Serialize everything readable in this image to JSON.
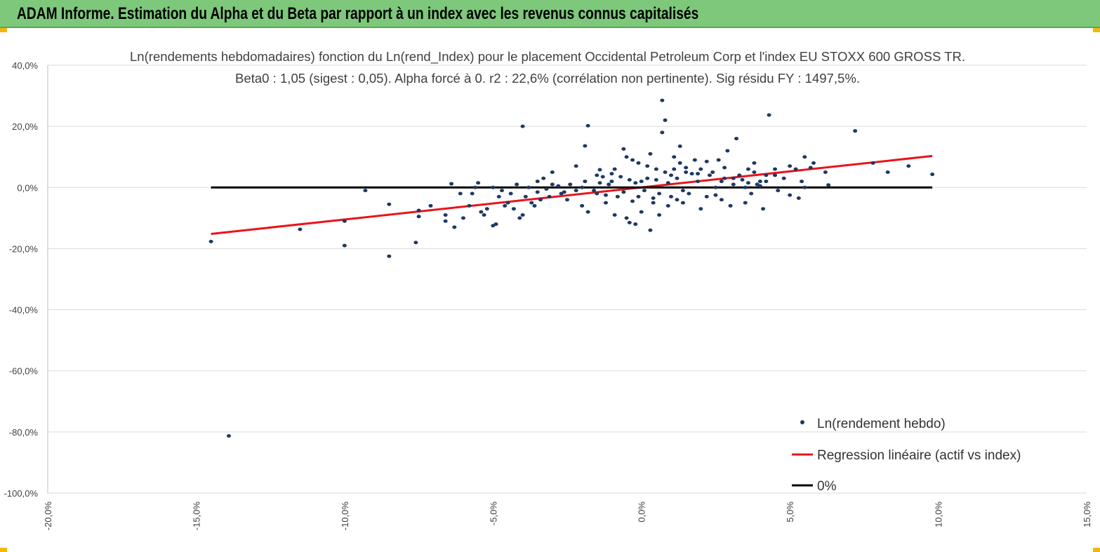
{
  "header": {
    "title": "ADAM Informe. Estimation du Alpha et du Beta par rapport à un index avec les revenus connus capitalisés"
  },
  "colors": {
    "banner": "#7dc87a",
    "points": "#1f3864",
    "regression": "#e8141b",
    "zero": "#000000",
    "grid": "#d9d9d9"
  },
  "chart_data": {
    "type": "scatter",
    "title": "Ln(rendements hebdomadaires) fonction du Ln(rend_Index) pour le placement Occidental Petroleum Corp et l'index EU STOXX 600 GROSS TR.",
    "subtitle": "Beta0 : 1,05 (sigest : 0,05). Alpha forcé à 0. r2 : 22,6% (corrélation non pertinente). Sig résidu FY : 1497,5%.",
    "xlabel": "",
    "ylabel": "",
    "xlim": [
      -0.2,
      0.15
    ],
    "ylim": [
      -1.0,
      0.4
    ],
    "x_ticks": [
      -0.2,
      -0.15,
      -0.1,
      -0.05,
      0.0,
      0.05,
      0.1,
      0.15
    ],
    "x_tick_labels": [
      "-20,0%",
      "-15,0%",
      "-10,0%",
      "-5,0%",
      "0,0%",
      "5,0%",
      "10,0%",
      "15,0%"
    ],
    "y_ticks": [
      0.4,
      0.2,
      0.0,
      -0.2,
      -0.4,
      -0.6,
      -0.8,
      -1.0
    ],
    "y_tick_labels": [
      "40,0%",
      "20,0%",
      "0,0%",
      "-20,0%",
      "-40,0%",
      "-60,0%",
      "-80,0%",
      "-100,0%"
    ],
    "grid": "horizontal",
    "legend_position": "bottom-right",
    "series": [
      {
        "name": "Ln(rendement hebdo)",
        "kind": "points",
        "points": [
          [
            -0.145,
            -0.177
          ],
          [
            -0.139,
            -0.813
          ],
          [
            -0.115,
            -0.137
          ],
          [
            -0.1,
            -0.19
          ],
          [
            -0.1,
            -0.11
          ],
          [
            -0.093,
            -0.01
          ],
          [
            -0.085,
            -0.225
          ],
          [
            -0.085,
            -0.055
          ],
          [
            -0.076,
            -0.18
          ],
          [
            -0.075,
            -0.075
          ],
          [
            -0.075,
            -0.095
          ],
          [
            -0.071,
            -0.06
          ],
          [
            -0.066,
            -0.09
          ],
          [
            -0.066,
            -0.11
          ],
          [
            -0.064,
            0.012
          ],
          [
            -0.063,
            -0.13
          ],
          [
            -0.061,
            -0.02
          ],
          [
            -0.06,
            -0.1
          ],
          [
            -0.058,
            -0.06
          ],
          [
            -0.057,
            -0.02
          ],
          [
            -0.056,
            0.0
          ],
          [
            -0.055,
            0.015
          ],
          [
            -0.054,
            -0.08
          ],
          [
            -0.053,
            -0.09
          ],
          [
            -0.052,
            -0.07
          ],
          [
            -0.05,
            0.0
          ],
          [
            -0.05,
            -0.125
          ],
          [
            -0.049,
            -0.12
          ],
          [
            -0.048,
            -0.03
          ],
          [
            -0.047,
            -0.01
          ],
          [
            -0.046,
            -0.06
          ],
          [
            -0.045,
            -0.05
          ],
          [
            -0.044,
            -0.02
          ],
          [
            -0.043,
            -0.07
          ],
          [
            -0.042,
            0.01
          ],
          [
            -0.041,
            -0.1
          ],
          [
            -0.04,
            -0.09
          ],
          [
            -0.04,
            0.2
          ],
          [
            -0.039,
            -0.03
          ],
          [
            -0.038,
            0.0
          ],
          [
            -0.037,
            -0.05
          ],
          [
            -0.036,
            -0.06
          ],
          [
            -0.035,
            0.02
          ],
          [
            -0.034,
            -0.04
          ],
          [
            -0.033,
            0.03
          ],
          [
            -0.031,
            -0.03
          ],
          [
            -0.03,
            0.01
          ],
          [
            -0.03,
            0.05
          ],
          [
            -0.027,
            -0.02
          ],
          [
            -0.025,
            -0.04
          ],
          [
            -0.022,
            0.07
          ],
          [
            -0.02,
            -0.06
          ],
          [
            -0.02,
            0.0
          ],
          [
            -0.018,
            -0.08
          ],
          [
            -0.015,
            0.04
          ],
          [
            -0.015,
            -0.02
          ],
          [
            -0.014,
            0.058
          ],
          [
            -0.013,
            0.035
          ],
          [
            -0.012,
            -0.05
          ],
          [
            -0.011,
            0.01
          ],
          [
            -0.01,
            0.045
          ],
          [
            -0.018,
            0.202
          ],
          [
            -0.019,
            0.136
          ],
          [
            -0.009,
            -0.09
          ],
          [
            -0.009,
            0.06
          ],
          [
            -0.006,
            0.126
          ],
          [
            -0.005,
            -0.1
          ],
          [
            -0.005,
            0.1
          ],
          [
            -0.004,
            -0.115
          ],
          [
            -0.003,
            0.09
          ],
          [
            -0.002,
            -0.12
          ],
          [
            -0.001,
            0.08
          ],
          [
            0.0,
            -0.08
          ],
          [
            0.002,
            0.07
          ],
          [
            0.003,
            -0.14
          ],
          [
            0.003,
            0.11
          ],
          [
            0.004,
            -0.05
          ],
          [
            0.005,
            0.06
          ],
          [
            0.007,
            0.18
          ],
          [
            0.006,
            -0.09
          ],
          [
            0.009,
            -0.06
          ],
          [
            0.01,
            0.04
          ],
          [
            0.011,
            0.1
          ],
          [
            0.012,
            -0.04
          ],
          [
            0.007,
            0.285
          ],
          [
            0.008,
            0.22
          ],
          [
            0.013,
            0.135
          ],
          [
            0.013,
            0.08
          ],
          [
            0.014,
            -0.05
          ],
          [
            0.015,
            0.05
          ],
          [
            0.016,
            -0.02
          ],
          [
            0.018,
            0.09
          ],
          [
            0.02,
            0.06
          ],
          [
            0.02,
            -0.07
          ],
          [
            0.022,
            -0.03
          ],
          [
            0.024,
            0.05
          ],
          [
            0.025,
            0.0
          ],
          [
            0.026,
            0.09
          ],
          [
            0.027,
            -0.04
          ],
          [
            0.028,
            0.065
          ],
          [
            0.029,
            0.12
          ],
          [
            0.03,
            -0.06
          ],
          [
            0.031,
            0.01
          ],
          [
            0.032,
            0.16
          ],
          [
            0.033,
            0.04
          ],
          [
            0.035,
            0.0
          ],
          [
            0.036,
            0.06
          ],
          [
            0.037,
            -0.02
          ],
          [
            0.038,
            0.05
          ],
          [
            0.04,
            0.02
          ],
          [
            0.041,
            -0.07
          ],
          [
            0.042,
            0.04
          ],
          [
            0.043,
            0.237
          ],
          [
            0.045,
            0.06
          ],
          [
            0.046,
            -0.01
          ],
          [
            0.048,
            0.03
          ],
          [
            0.05,
            0.07
          ],
          [
            0.052,
            0.06
          ],
          [
            0.054,
            0.02
          ],
          [
            0.05,
            -0.025
          ],
          [
            0.053,
            -0.035
          ],
          [
            0.055,
            0.1
          ],
          [
            0.057,
            0.065
          ],
          [
            0.058,
            0.08
          ],
          [
            0.062,
            0.05
          ],
          [
            0.063,
            0.008
          ],
          [
            0.072,
            0.185
          ],
          [
            0.078,
            0.08
          ],
          [
            0.083,
            0.05
          ],
          [
            0.098,
            0.043
          ],
          [
            0.09,
            0.07
          ],
          [
            0.055,
            0.0
          ],
          [
            0.04,
            0.005
          ],
          [
            0.045,
            0.04
          ],
          [
            0.035,
            -0.05
          ],
          [
            0.038,
            0.08
          ],
          [
            0.028,
            0.03
          ],
          [
            0.025,
            -0.025
          ],
          [
            0.022,
            0.085
          ],
          [
            0.019,
            0.02
          ],
          [
            0.017,
            0.045
          ],
          [
            0.014,
            -0.01
          ],
          [
            0.012,
            0.03
          ],
          [
            0.01,
            -0.03
          ],
          [
            0.009,
            0.015
          ],
          [
            0.008,
            0.05
          ],
          [
            0.006,
            -0.02
          ],
          [
            0.005,
            0.025
          ],
          [
            0.004,
            -0.035
          ],
          [
            0.002,
            0.03
          ],
          [
            0.001,
            -0.01
          ],
          [
            0.0,
            0.02
          ],
          [
            -0.001,
            -0.03
          ],
          [
            -0.002,
            0.015
          ],
          [
            -0.003,
            -0.045
          ],
          [
            -0.004,
            0.025
          ],
          [
            -0.006,
            -0.015
          ],
          [
            -0.007,
            0.035
          ],
          [
            -0.008,
            -0.03
          ],
          [
            -0.01,
            0.02
          ],
          [
            -0.012,
            -0.025
          ],
          [
            -0.014,
            0.015
          ],
          [
            -0.016,
            -0.01
          ],
          [
            -0.019,
            0.02
          ],
          [
            -0.022,
            -0.01
          ],
          [
            -0.024,
            0.01
          ],
          [
            -0.026,
            -0.015
          ],
          [
            -0.028,
            0.005
          ],
          [
            -0.032,
            -0.005
          ],
          [
            -0.035,
            -0.015
          ],
          [
            0.011,
            0.06
          ],
          [
            0.015,
            0.065
          ],
          [
            0.019,
            0.045
          ],
          [
            0.023,
            0.04
          ],
          [
            0.027,
            0.02
          ],
          [
            0.031,
            0.03
          ],
          [
            0.034,
            0.025
          ],
          [
            0.036,
            0.015
          ],
          [
            0.039,
            0.01
          ],
          [
            0.042,
            0.02
          ]
        ]
      },
      {
        "name": "Regression linéaire (actif vs index)",
        "kind": "line",
        "points": [
          [
            -0.145,
            -0.152
          ],
          [
            0.098,
            0.103
          ]
        ]
      },
      {
        "name": "0%",
        "kind": "line",
        "points": [
          [
            -0.145,
            0.0
          ],
          [
            0.098,
            0.0
          ]
        ]
      }
    ]
  }
}
